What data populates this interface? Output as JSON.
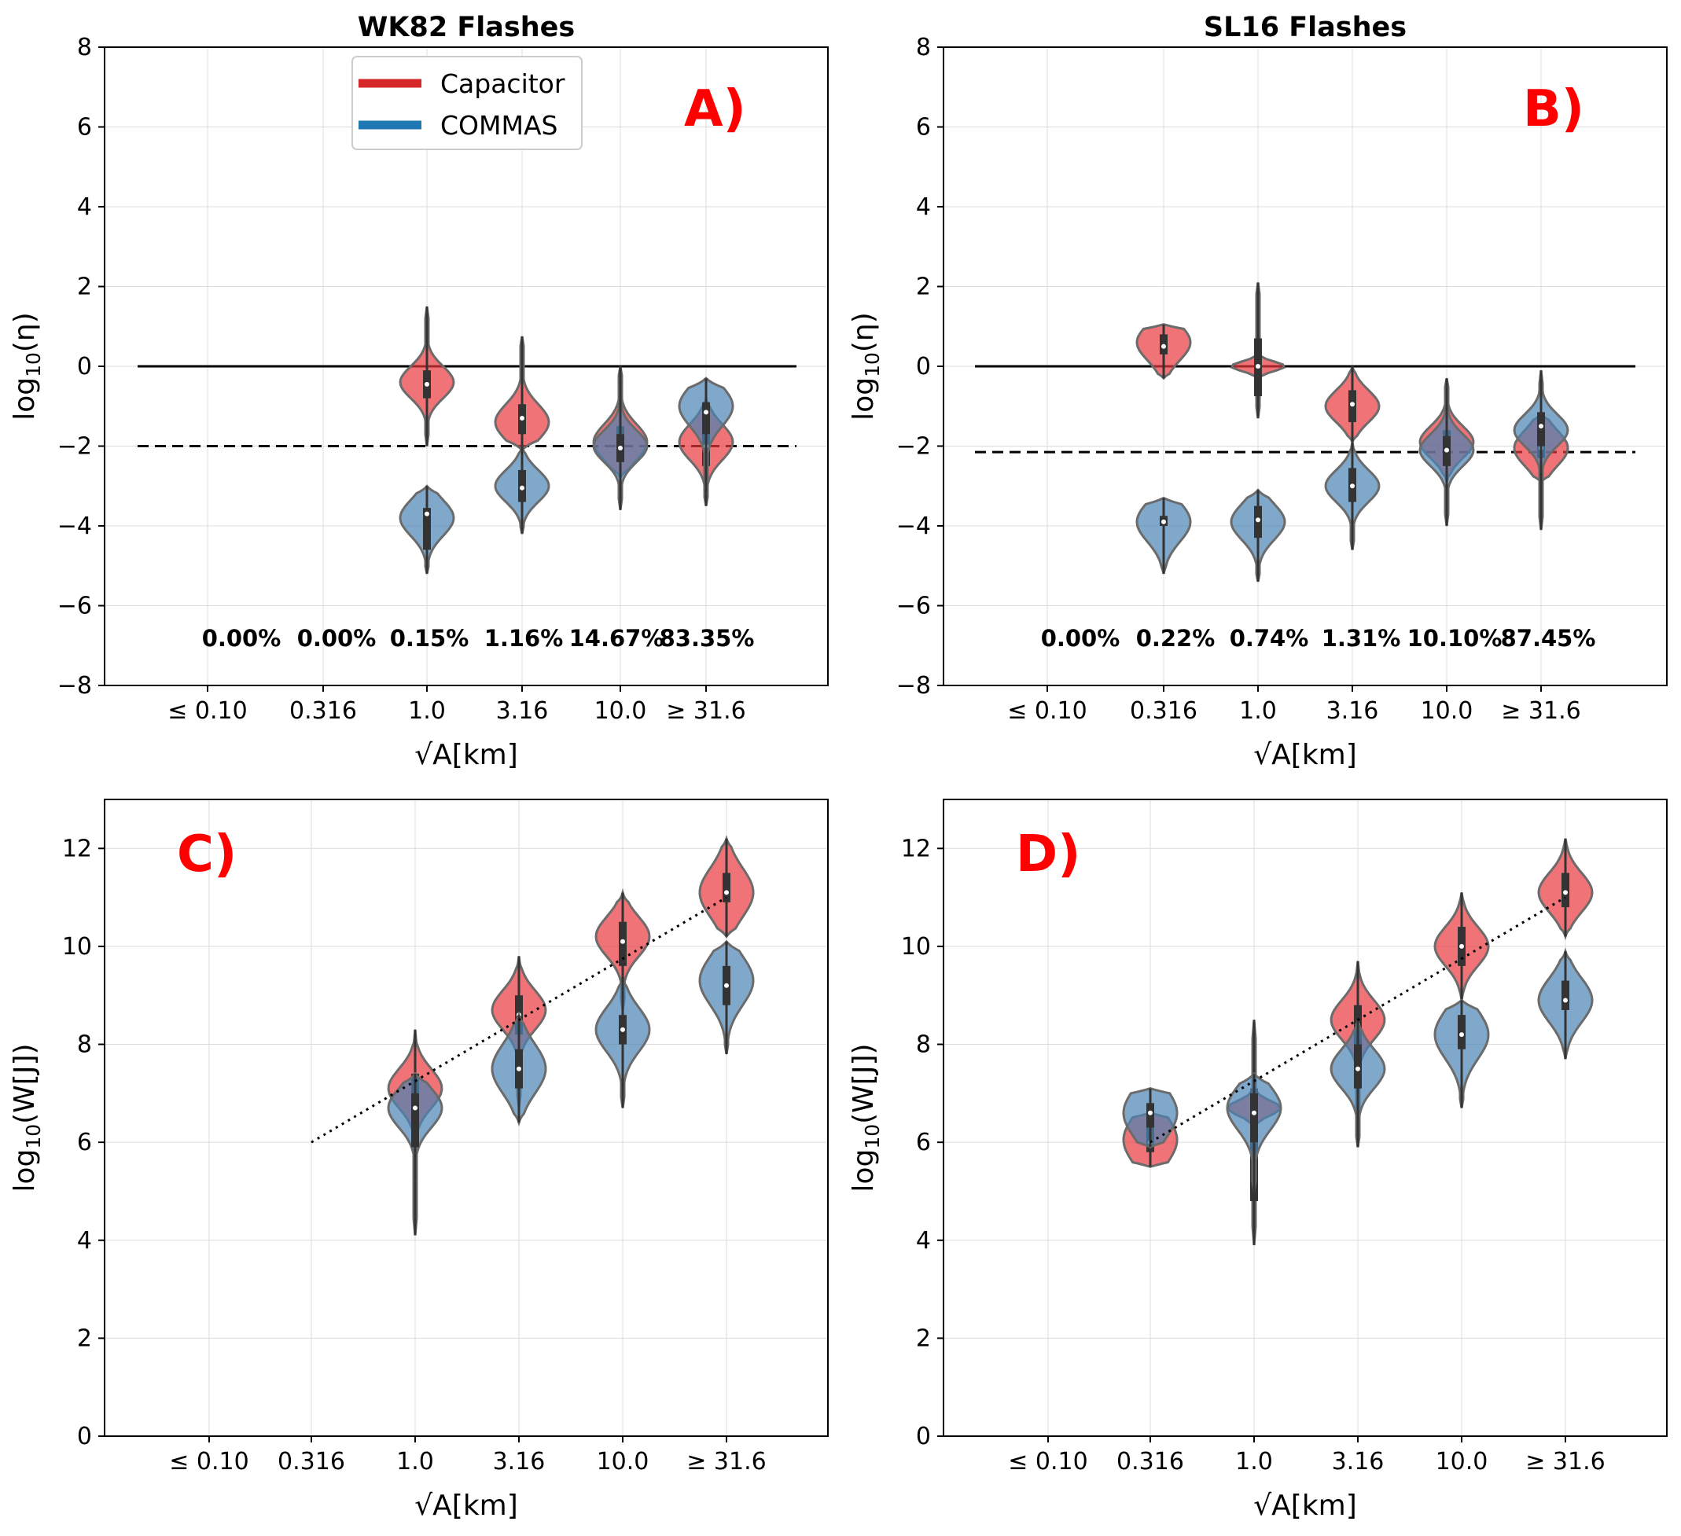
{
  "colors": {
    "capacitor": "#E8383D",
    "commas": "#4A83B4",
    "legend_capacitor": "#D62728",
    "legend_commas": "#1F77B4",
    "panel_label": "#FF0000"
  },
  "legend": {
    "items": [
      "Capacitor",
      "COMMAS"
    ]
  },
  "chart_data": [
    {
      "id": "A",
      "type": "violin",
      "title": "WK82 Flashes",
      "panel_label": "A)",
      "xlabel": "√A[km]",
      "ylabel": "log10(η)",
      "categories": [
        "≤ 0.10",
        "0.316",
        "1.0",
        "3.16",
        "10.0",
        "≥ 31.6"
      ],
      "ylim": [
        -8,
        8
      ],
      "yticks": [
        -8,
        -6,
        -4,
        -2,
        0,
        2,
        4,
        6,
        8
      ],
      "reference_lines": [
        {
          "style": "solid",
          "y": 0
        },
        {
          "style": "dashed",
          "y": -2
        }
      ],
      "percentages": [
        "0.00%",
        "0.00%",
        "0.15%",
        "1.16%",
        "14.67%",
        "83.35%"
      ],
      "series": [
        {
          "name": "Capacitor",
          "color": "capacitor",
          "values": [
            null,
            null,
            {
              "min": -2.0,
              "max": 1.5,
              "q1": -0.8,
              "median": -0.45,
              "q3": -0.1,
              "mode": -0.4,
              "spread": 0.4
            },
            {
              "min": -2.1,
              "max": 0.75,
              "q1": -1.7,
              "median": -1.3,
              "q3": -0.95,
              "mode": -1.4,
              "spread": 0.45
            },
            {
              "min": -2.8,
              "max": 0.0,
              "q1": -2.3,
              "median": -1.9,
              "q3": -1.5,
              "mode": -1.9,
              "spread": 0.45
            },
            {
              "min": -3.5,
              "max": -0.8,
              "q1": -2.5,
              "median": -2.0,
              "q3": -1.6,
              "mode": -1.9,
              "spread": 0.45
            }
          ]
        },
        {
          "name": "COMMAS",
          "color": "commas",
          "values": [
            null,
            null,
            {
              "min": -5.2,
              "max": -3.0,
              "q1": -4.6,
              "median": -3.7,
              "q3": -3.55,
              "mode": -3.8,
              "spread": 0.45
            },
            {
              "min": -4.2,
              "max": -2.0,
              "q1": -3.4,
              "median": -3.05,
              "q3": -2.6,
              "mode": -3.0,
              "spread": 0.4
            },
            {
              "min": -3.6,
              "max": -0.3,
              "q1": -2.4,
              "median": -2.05,
              "q3": -1.7,
              "mode": -2.0,
              "spread": 0.4
            },
            {
              "min": -3.2,
              "max": -0.3,
              "q1": -1.7,
              "median": -1.15,
              "q3": -0.9,
              "mode": -1.0,
              "spread": 0.5
            }
          ]
        }
      ]
    },
    {
      "id": "B",
      "type": "violin",
      "title": "SL16 Flashes",
      "panel_label": "B)",
      "xlabel": "√A[km]",
      "ylabel": "log10(η)",
      "categories": [
        "≤ 0.10",
        "0.316",
        "1.0",
        "3.16",
        "10.0",
        "≥ 31.6"
      ],
      "ylim": [
        -8,
        8
      ],
      "yticks": [
        -8,
        -6,
        -4,
        -2,
        0,
        2,
        4,
        6,
        8
      ],
      "reference_lines": [
        {
          "style": "solid",
          "y": 0
        },
        {
          "style": "dashed",
          "y": -2.15
        }
      ],
      "percentages": [
        "0.00%",
        "0.22%",
        "0.74%",
        "1.31%",
        "10.10%",
        "87.45%"
      ],
      "series": [
        {
          "name": "Capacitor",
          "color": "capacitor",
          "values": [
            null,
            {
              "min": -0.3,
              "max": 1.05,
              "q1": 0.3,
              "median": 0.5,
              "q3": 0.8,
              "mode": 0.6,
              "spread": 0.45
            },
            {
              "min": -1.3,
              "max": 2.1,
              "q1": -0.75,
              "median": 0.0,
              "q3": 0.7,
              "mode": 0.0,
              "spread": 0.12
            },
            {
              "min": -1.9,
              "max": 0.0,
              "q1": -1.4,
              "median": -0.95,
              "q3": -0.6,
              "mode": -1.0,
              "spread": 0.4
            },
            {
              "min": -2.9,
              "max": -0.3,
              "q1": -2.2,
              "median": -1.9,
              "q3": -1.6,
              "mode": -1.9,
              "spread": 0.4
            },
            {
              "min": -2.9,
              "max": -1.2,
              "q1": -2.3,
              "median": -2.05,
              "q3": -1.85,
              "mode": -2.05,
              "spread": 0.45
            }
          ]
        },
        {
          "name": "COMMAS",
          "color": "commas",
          "values": [
            null,
            {
              "min": -5.2,
              "max": -3.3,
              "q1": -4.0,
              "median": -3.9,
              "q3": -3.75,
              "mode": -3.9,
              "spread": 0.5
            },
            {
              "min": -5.4,
              "max": -3.1,
              "q1": -4.3,
              "median": -3.85,
              "q3": -3.5,
              "mode": -3.9,
              "spread": 0.45
            },
            {
              "min": -4.6,
              "max": -1.9,
              "q1": -3.4,
              "median": -3.0,
              "q3": -2.55,
              "mode": -3.0,
              "spread": 0.4
            },
            {
              "min": -4.0,
              "max": -0.5,
              "q1": -2.5,
              "median": -2.1,
              "q3": -1.75,
              "mode": -2.1,
              "spread": 0.4
            },
            {
              "min": -4.1,
              "max": -0.1,
              "q1": -2.0,
              "median": -1.5,
              "q3": -1.15,
              "mode": -1.6,
              "spread": 0.4
            }
          ]
        }
      ]
    },
    {
      "id": "C",
      "type": "violin",
      "title": "",
      "panel_label": "C)",
      "xlabel": "√A[km]",
      "ylabel": "log10(W[J])",
      "categories": [
        "≤ 0.10",
        "0.316",
        "1.0",
        "3.16",
        "10.0",
        "≥ 31.6"
      ],
      "ylim": [
        0,
        13
      ],
      "yticks": [
        0,
        2,
        4,
        6,
        8,
        10,
        12
      ],
      "fit_line": {
        "x_start_index": 1,
        "x_end_index": 5,
        "y_start": 6.0,
        "y_end": 11.0
      },
      "series": [
        {
          "name": "Capacitor",
          "color": "capacitor",
          "values": [
            null,
            null,
            {
              "min": 4.1,
              "max": 8.3,
              "q1": 6.3,
              "median": 6.9,
              "q3": 7.4,
              "mode": 7.1,
              "spread": 0.4
            },
            {
              "min": 6.7,
              "max": 9.8,
              "q1": 8.2,
              "median": 8.6,
              "q3": 9.0,
              "mode": 8.7,
              "spread": 0.4
            },
            {
              "min": 8.7,
              "max": 11.1,
              "q1": 9.6,
              "median": 10.1,
              "q3": 10.5,
              "mode": 10.2,
              "spread": 0.4
            },
            {
              "min": 10.2,
              "max": 12.2,
              "q1": 10.9,
              "median": 11.1,
              "q3": 11.5,
              "mode": 11.1,
              "spread": 0.5
            }
          ]
        },
        {
          "name": "COMMAS",
          "color": "commas",
          "values": [
            null,
            null,
            {
              "min": 5.2,
              "max": 7.4,
              "q1": 5.9,
              "median": 6.7,
              "q3": 7.0,
              "mode": 6.7,
              "spread": 0.4
            },
            {
              "min": 6.4,
              "max": 8.6,
              "q1": 7.1,
              "median": 7.5,
              "q3": 7.9,
              "mode": 7.5,
              "spread": 0.5
            },
            {
              "min": 6.7,
              "max": 9.4,
              "q1": 8.0,
              "median": 8.3,
              "q3": 8.6,
              "mode": 8.3,
              "spread": 0.45
            },
            {
              "min": 7.8,
              "max": 10.1,
              "q1": 8.8,
              "median": 9.2,
              "q3": 9.6,
              "mode": 9.3,
              "spread": 0.5
            }
          ]
        }
      ]
    },
    {
      "id": "D",
      "type": "violin",
      "title": "",
      "panel_label": "D)",
      "xlabel": "√A[km]",
      "ylabel": "log10(W[J])",
      "categories": [
        "≤ 0.10",
        "0.316",
        "1.0",
        "3.16",
        "10.0",
        "≥ 31.6"
      ],
      "ylim": [
        0,
        13
      ],
      "yticks": [
        0,
        2,
        4,
        6,
        8,
        10,
        12
      ],
      "fit_line": {
        "x_start_index": 1,
        "x_end_index": 5,
        "y_start": 6.0,
        "y_end": 11.0
      },
      "series": [
        {
          "name": "Capacitor",
          "color": "capacitor",
          "values": [
            null,
            {
              "min": 5.5,
              "max": 6.6,
              "q1": 5.8,
              "median": 6.0,
              "q3": 6.3,
              "mode": 6.05,
              "spread": 0.5
            },
            {
              "min": 3.9,
              "max": 8.5,
              "q1": 4.8,
              "median": 6.6,
              "q3": 7.1,
              "mode": 6.7,
              "spread": 0.15
            },
            {
              "min": 6.2,
              "max": 9.7,
              "q1": 7.8,
              "median": 8.4,
              "q3": 8.8,
              "mode": 8.5,
              "spread": 0.4
            },
            {
              "min": 8.9,
              "max": 11.1,
              "q1": 9.6,
              "median": 10.0,
              "q3": 10.4,
              "mode": 10.0,
              "spread": 0.4
            },
            {
              "min": 10.2,
              "max": 12.2,
              "q1": 10.8,
              "median": 11.1,
              "q3": 11.5,
              "mode": 11.1,
              "spread": 0.4
            }
          ]
        },
        {
          "name": "COMMAS",
          "color": "commas",
          "values": [
            null,
            {
              "min": 5.9,
              "max": 7.1,
              "q1": 6.3,
              "median": 6.6,
              "q3": 6.8,
              "mode": 6.6,
              "spread": 0.5
            },
            {
              "min": 5.0,
              "max": 7.4,
              "q1": 6.0,
              "median": 6.6,
              "q3": 7.0,
              "mode": 6.7,
              "spread": 0.45
            },
            {
              "min": 5.9,
              "max": 8.5,
              "q1": 7.1,
              "median": 7.5,
              "q3": 8.0,
              "mode": 7.5,
              "spread": 0.4
            },
            {
              "min": 6.7,
              "max": 8.9,
              "q1": 7.9,
              "median": 8.2,
              "q3": 8.6,
              "mode": 8.2,
              "spread": 0.5
            },
            {
              "min": 7.7,
              "max": 9.9,
              "q1": 8.7,
              "median": 8.9,
              "q3": 9.3,
              "mode": 8.9,
              "spread": 0.45
            }
          ]
        }
      ]
    }
  ]
}
